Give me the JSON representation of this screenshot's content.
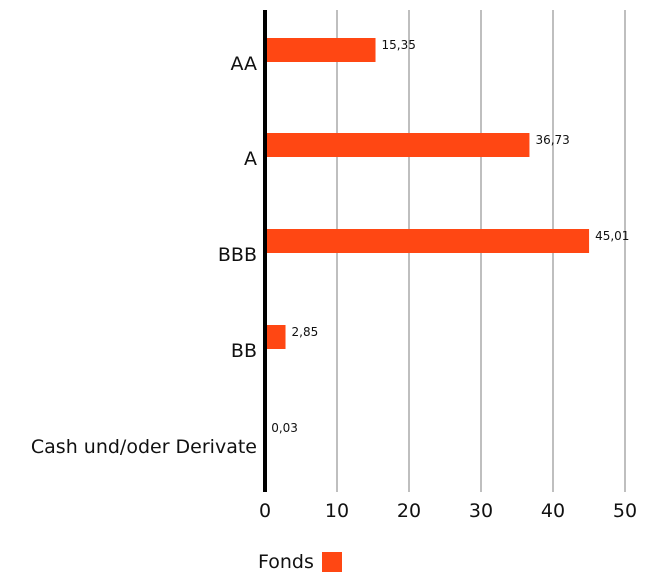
{
  "chart_data": {
    "type": "bar",
    "orientation": "horizontal",
    "categories": [
      "AA",
      "A",
      "BBB",
      "BB",
      "Cash und/oder Derivate"
    ],
    "series": [
      {
        "name": "Fonds",
        "values": [
          15.35,
          36.73,
          45.01,
          2.85,
          0.03
        ]
      }
    ],
    "data_labels": [
      "15,35",
      "36,73",
      "45,01",
      "2,85",
      "0,03"
    ],
    "xlim": [
      0,
      50
    ],
    "xticks": [
      "0",
      "10",
      "20",
      "30",
      "40",
      "50"
    ],
    "grid": true,
    "legend_position": "bottom",
    "colors": {
      "bar": "#ff4713",
      "grid": "#bfbfbf",
      "axis": "#000000"
    }
  }
}
